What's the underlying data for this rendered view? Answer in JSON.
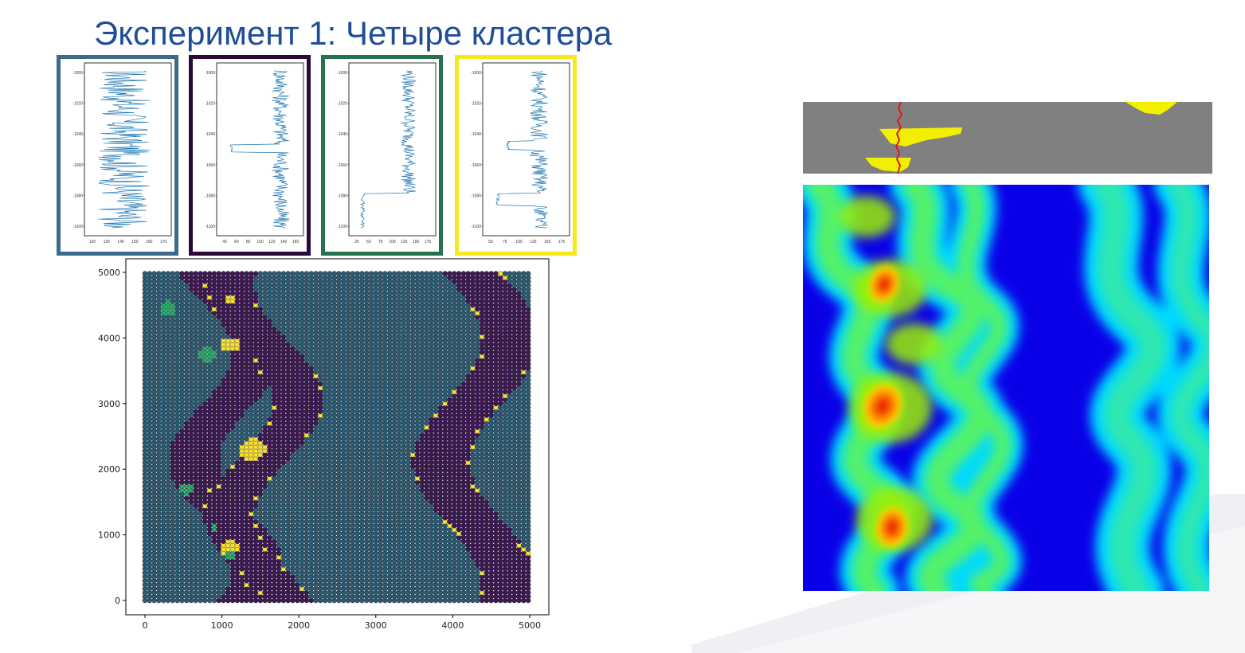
{
  "title": "Эксперимент 1: Четыре кластера",
  "colors": {
    "title": "#1f4e96",
    "cluster_frames": [
      "#3b6a8c",
      "#2a0a3a",
      "#24734e",
      "#f5e81c"
    ],
    "log_line": "#1f77b4",
    "cluster_palette": [
      "#2e5b72",
      "#3d1a53",
      "#27ab6a",
      "#f7e031"
    ],
    "heat_background": "#0a00e8",
    "section_bg": "#808080",
    "section_yellow": "#f2ef00",
    "well_red": "#e0161c"
  },
  "logs": [
    {
      "yticks": [
        "-1000",
        "-1020",
        "-1040",
        "-1060",
        "-1080",
        "-1100"
      ],
      "xticks": [
        "120",
        "130",
        "140",
        "150",
        "160",
        "170"
      ]
    },
    {
      "yticks": [
        "-1000",
        "-1020",
        "-1040",
        "-1060",
        "-1080",
        "-1100"
      ],
      "xticks": [
        "40",
        "60",
        "80",
        "100",
        "120",
        "140",
        "160"
      ]
    },
    {
      "yticks": [
        "-1000",
        "-1020",
        "-1040",
        "-1060",
        "-1080",
        "-1100"
      ],
      "xticks": [
        "25",
        "50",
        "75",
        "100",
        "125",
        "150",
        "175"
      ]
    },
    {
      "yticks": [
        "-1000",
        "-1020",
        "-1040",
        "-1060",
        "-1080",
        "-1100"
      ],
      "xticks": [
        "50",
        "75",
        "100",
        "125",
        "150",
        "175"
      ]
    }
  ],
  "chart_data": {
    "type": "scatter",
    "title": "",
    "xlabel": "",
    "ylabel": "",
    "xlim": [
      0,
      5000
    ],
    "ylim": [
      0,
      5000
    ],
    "xticks": [
      "0",
      "1000",
      "2000",
      "3000",
      "4000",
      "5000"
    ],
    "yticks": [
      "0",
      "1000",
      "2000",
      "3000",
      "4000",
      "5000"
    ],
    "grid": false,
    "clusters": 4
  }
}
